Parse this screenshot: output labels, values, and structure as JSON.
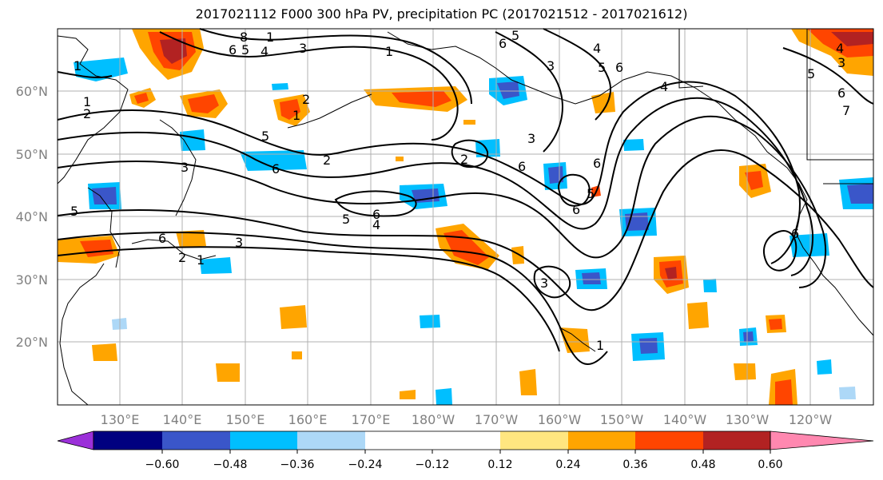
{
  "title": "2017021112 F000 300 hPa PV, precipitation PC (2017021512 - 2017021612)",
  "lat_labels": [
    "60°N",
    "50°N",
    "40°N",
    "30°N",
    "20°N"
  ],
  "lon_labels": [
    "130°E",
    "140°E",
    "150°E",
    "160°E",
    "170°E",
    "180°W",
    "170°W",
    "160°W",
    "150°W",
    "140°W",
    "130°W",
    "120°W"
  ],
  "colorbar": {
    "colors": [
      "#9b30d9",
      "#000080",
      "#3a56c9",
      "#00bfff",
      "#add8f7",
      "#ffffff",
      "#ffe680",
      "#ffa500",
      "#ff4500",
      "#b22222",
      "#ff88b0"
    ],
    "labels": [
      "−0.60",
      "−0.48",
      "−0.36",
      "−0.24",
      "−0.12",
      "0.12",
      "0.24",
      "0.36",
      "0.48",
      "0.60"
    ]
  },
  "contour_labels": [
    "1",
    "2",
    "3",
    "4",
    "5",
    "6",
    "7",
    "8"
  ]
}
